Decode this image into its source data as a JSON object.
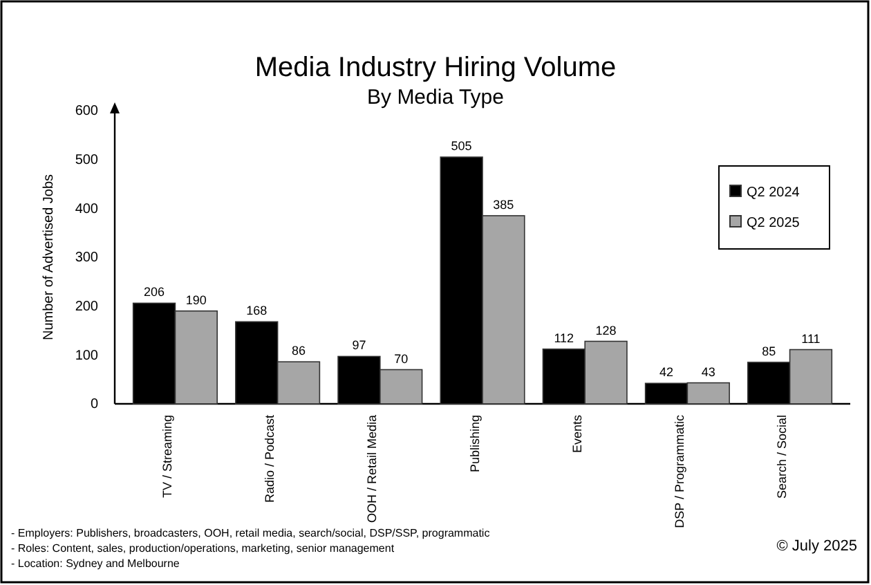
{
  "chart_data": {
    "type": "bar",
    "title": "Media Industry Hiring Volume",
    "subtitle": "By Media Type",
    "ylabel": "Number of Advertised Jobs",
    "categories": [
      "TV / Streaming",
      "Radio / Podcast",
      "OOH / Retail Media",
      "Publishing",
      "Events",
      "DSP / Programmatic",
      "Search / Social"
    ],
    "series": [
      {
        "name": "Q2 2024",
        "color": "#000000",
        "values": [
          206,
          168,
          97,
          505,
          112,
          42,
          85
        ]
      },
      {
        "name": "Q2 2025",
        "color": "#a6a6a6",
        "values": [
          190,
          86,
          70,
          385,
          128,
          43,
          111
        ]
      }
    ],
    "ylim": [
      0,
      600
    ],
    "yticks": [
      0,
      100,
      200,
      300,
      400,
      500,
      600
    ],
    "grid": false,
    "legend": "top right",
    "data_labels": true,
    "annotations": [
      "- Employers: Publishers, broadcasters, OOH, retail media, search/social, DSP/SSP, programmatic",
      "- Roles: Content, sales, production/operations, marketing, senior management",
      "- Location: Sydney and Melbourne",
      "© July 2025"
    ]
  }
}
